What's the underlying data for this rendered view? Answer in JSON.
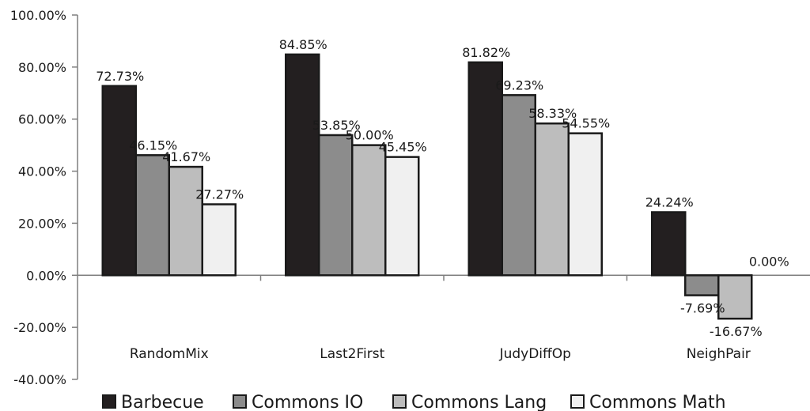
{
  "chart_data": {
    "type": "bar",
    "categories": [
      "RandomMix",
      "Last2First",
      "JudyDiffOp",
      "NeighPair"
    ],
    "series": [
      {
        "name": "Barbecue",
        "color": "#231f20",
        "values": [
          72.73,
          84.85,
          81.82,
          24.24
        ],
        "labels": [
          "72.73%",
          "84.85%",
          "81.82%",
          "24.24%"
        ]
      },
      {
        "name": "Commons IO",
        "color": "#8c8c8c",
        "values": [
          46.15,
          53.85,
          69.23,
          -7.69
        ],
        "labels": [
          "46.15%",
          "53.85%",
          "69.23%",
          "-7.69%"
        ]
      },
      {
        "name": "Commons Lang",
        "color": "#bdbdbd",
        "values": [
          41.67,
          50.0,
          58.33,
          -16.67
        ],
        "labels": [
          "41.67%",
          "50.00%",
          "58.33%",
          "-16.67%"
        ]
      },
      {
        "name": "Commons Math",
        "color": "#f0f0f0",
        "values": [
          27.27,
          45.45,
          54.55,
          0.0
        ],
        "labels": [
          "27.27%",
          "45.45%",
          "54.55%",
          "0.00%"
        ]
      }
    ],
    "ylim": [
      -40,
      100
    ],
    "yticks": [
      -40,
      -20,
      0,
      20,
      40,
      60,
      80,
      100
    ],
    "ytick_labels": [
      "-40.00%",
      "-20.00%",
      "0.00%",
      "20.00%",
      "40.00%",
      "60.00%",
      "80.00%",
      "100.00%"
    ],
    "title": "",
    "xlabel": "",
    "ylabel": "",
    "grid": false,
    "legend_position": "bottom"
  }
}
